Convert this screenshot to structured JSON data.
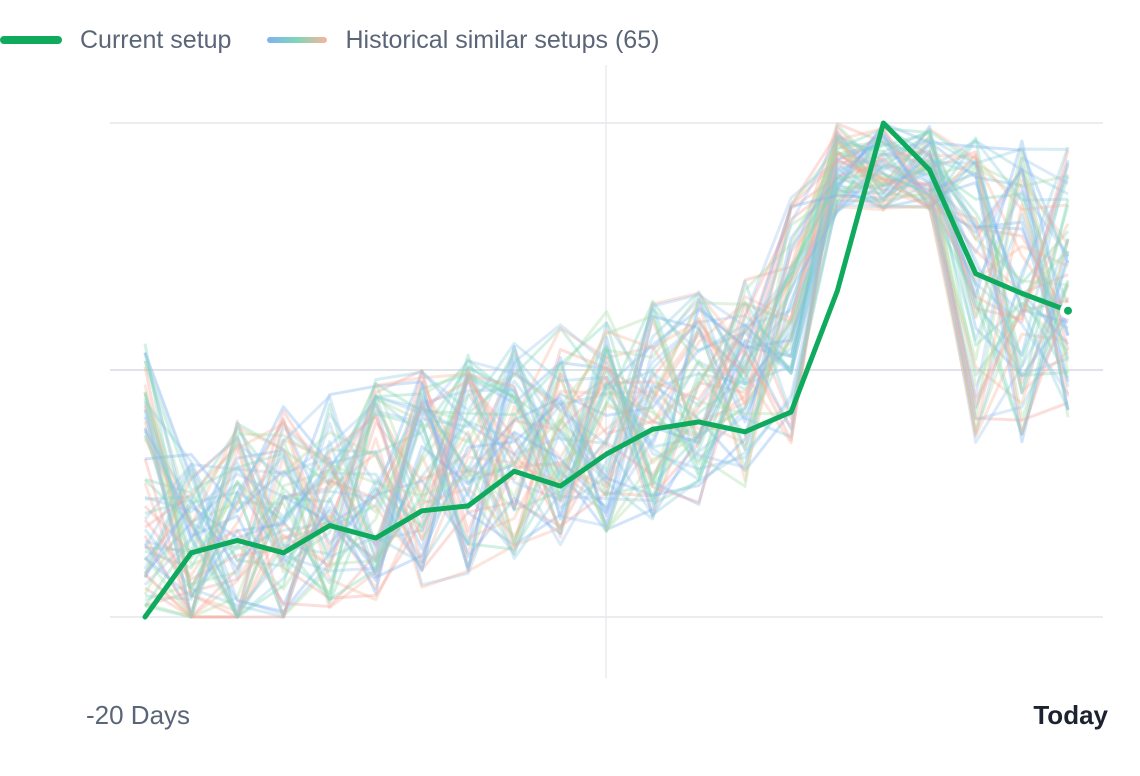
{
  "legend": {
    "current_label": "Current setup",
    "historical_label": "Historical similar setups (65)"
  },
  "colors": {
    "current": "#0faa5e",
    "historical_palette": [
      "#7fb2f0",
      "#7fd6b8",
      "#f7b59a",
      "#f3a29a",
      "#a9dca0",
      "#9cc3ee",
      "#88ccdd"
    ]
  },
  "x_axis": {
    "left_label": "-20 Days",
    "right_label": "Today"
  },
  "chart_data": {
    "type": "line",
    "title": "",
    "xlabel": "",
    "ylabel": "",
    "grid": true,
    "legend_placement": "top-left",
    "x": [
      -20,
      -19,
      -18,
      -17,
      -16,
      -15,
      -14,
      -13,
      -12,
      -11,
      -10,
      -9,
      -8,
      -7,
      -6,
      -5,
      -4,
      -3,
      -2,
      -1,
      0
    ],
    "ylim": [
      0,
      1
    ],
    "series": [
      {
        "name": "Current setup",
        "values": [
          0.0,
          0.13,
          0.155,
          0.13,
          0.185,
          0.16,
          0.215,
          0.225,
          0.295,
          0.265,
          0.33,
          0.38,
          0.395,
          0.375,
          0.415,
          0.66,
          1.0,
          0.905,
          0.695,
          0.655,
          0.62
        ]
      }
    ],
    "historical_setups_count": 65
  }
}
